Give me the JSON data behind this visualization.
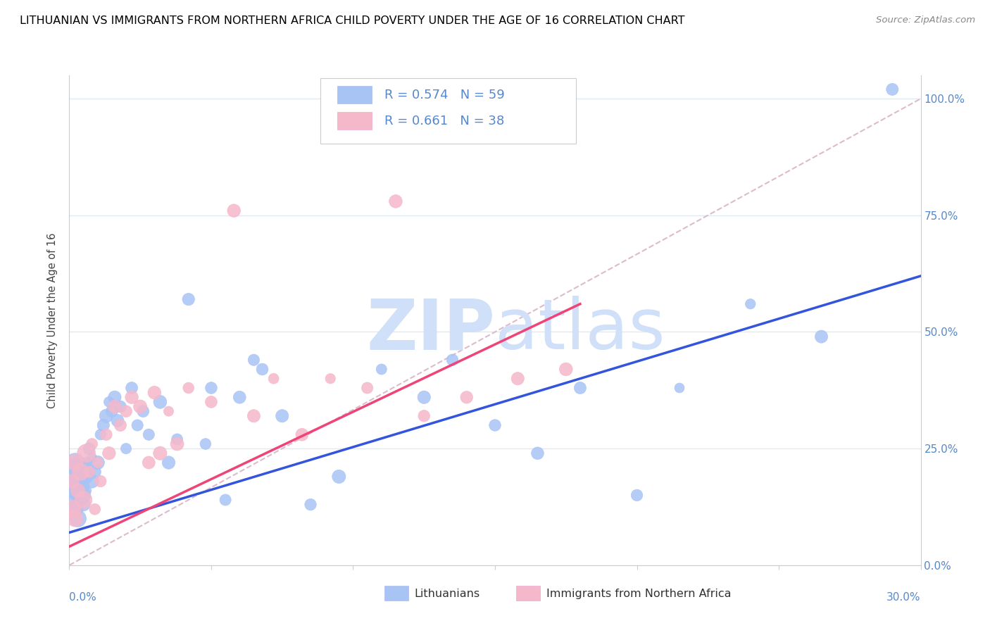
{
  "title": "LITHUANIAN VS IMMIGRANTS FROM NORTHERN AFRICA CHILD POVERTY UNDER THE AGE OF 16 CORRELATION CHART",
  "source": "Source: ZipAtlas.com",
  "ylabel": "Child Poverty Under the Age of 16",
  "yaxis_ticks": [
    "0.0%",
    "25.0%",
    "50.0%",
    "75.0%",
    "100.0%"
  ],
  "yaxis_values": [
    0,
    0.25,
    0.5,
    0.75,
    1.0
  ],
  "xaxis_ticks": [
    0.0,
    0.05,
    0.1,
    0.15,
    0.2,
    0.25,
    0.3
  ],
  "legend_blue_r": "0.574",
  "legend_blue_n": "59",
  "legend_pink_r": "0.661",
  "legend_pink_n": "38",
  "legend_label_blue": "Lithuanians",
  "legend_label_pink": "Immigrants from Northern Africa",
  "blue_color": "#a8c4f5",
  "pink_color": "#f5b8cb",
  "regression_blue_color": "#3355dd",
  "regression_pink_color": "#ee4477",
  "diag_line_color": "#ddbbcc",
  "watermark_color": "#d0e0f8",
  "blue_scatter_x": [
    0.001,
    0.001,
    0.001,
    0.002,
    0.002,
    0.002,
    0.003,
    0.003,
    0.003,
    0.004,
    0.004,
    0.005,
    0.005,
    0.006,
    0.006,
    0.006,
    0.007,
    0.007,
    0.008,
    0.008,
    0.009,
    0.01,
    0.011,
    0.012,
    0.013,
    0.014,
    0.015,
    0.016,
    0.017,
    0.018,
    0.02,
    0.022,
    0.024,
    0.026,
    0.028,
    0.032,
    0.035,
    0.038,
    0.042,
    0.048,
    0.05,
    0.055,
    0.06,
    0.065,
    0.068,
    0.075,
    0.085,
    0.095,
    0.11,
    0.125,
    0.135,
    0.15,
    0.165,
    0.18,
    0.2,
    0.215,
    0.24,
    0.265,
    0.29
  ],
  "blue_scatter_y": [
    0.14,
    0.17,
    0.2,
    0.12,
    0.16,
    0.22,
    0.1,
    0.18,
    0.21,
    0.15,
    0.2,
    0.13,
    0.17,
    0.16,
    0.22,
    0.19,
    0.21,
    0.25,
    0.18,
    0.23,
    0.2,
    0.22,
    0.28,
    0.3,
    0.32,
    0.35,
    0.33,
    0.36,
    0.31,
    0.34,
    0.25,
    0.38,
    0.3,
    0.33,
    0.28,
    0.35,
    0.22,
    0.27,
    0.57,
    0.26,
    0.38,
    0.14,
    0.36,
    0.44,
    0.42,
    0.32,
    0.13,
    0.19,
    0.42,
    0.36,
    0.44,
    0.3,
    0.24,
    0.38,
    0.15,
    0.38,
    0.56,
    0.49,
    1.02
  ],
  "pink_scatter_x": [
    0.001,
    0.001,
    0.002,
    0.002,
    0.003,
    0.004,
    0.005,
    0.006,
    0.007,
    0.008,
    0.009,
    0.01,
    0.011,
    0.013,
    0.014,
    0.016,
    0.018,
    0.02,
    0.022,
    0.025,
    0.028,
    0.03,
    0.032,
    0.035,
    0.038,
    0.042,
    0.05,
    0.058,
    0.065,
    0.072,
    0.082,
    0.092,
    0.105,
    0.115,
    0.125,
    0.14,
    0.158,
    0.175
  ],
  "pink_scatter_y": [
    0.12,
    0.18,
    0.1,
    0.22,
    0.16,
    0.2,
    0.14,
    0.24,
    0.2,
    0.26,
    0.12,
    0.22,
    0.18,
    0.28,
    0.24,
    0.34,
    0.3,
    0.33,
    0.36,
    0.34,
    0.22,
    0.37,
    0.24,
    0.33,
    0.26,
    0.38,
    0.35,
    0.76,
    0.32,
    0.4,
    0.28,
    0.4,
    0.38,
    0.78,
    0.32,
    0.36,
    0.4,
    0.42
  ],
  "blue_line_x": [
    0.0,
    0.3
  ],
  "blue_line_y": [
    0.07,
    0.62
  ],
  "pink_line_x": [
    0.0,
    0.18
  ],
  "pink_line_y": [
    0.04,
    0.56
  ],
  "xlim": [
    0.0,
    0.3
  ],
  "ylim": [
    0.0,
    1.05
  ],
  "grid_color": "#e0e8f0",
  "spine_color": "#cccccc",
  "tick_color": "#5588cc",
  "title_fontsize": 11.5,
  "axis_label_fontsize": 10.5,
  "tick_fontsize": 11
}
